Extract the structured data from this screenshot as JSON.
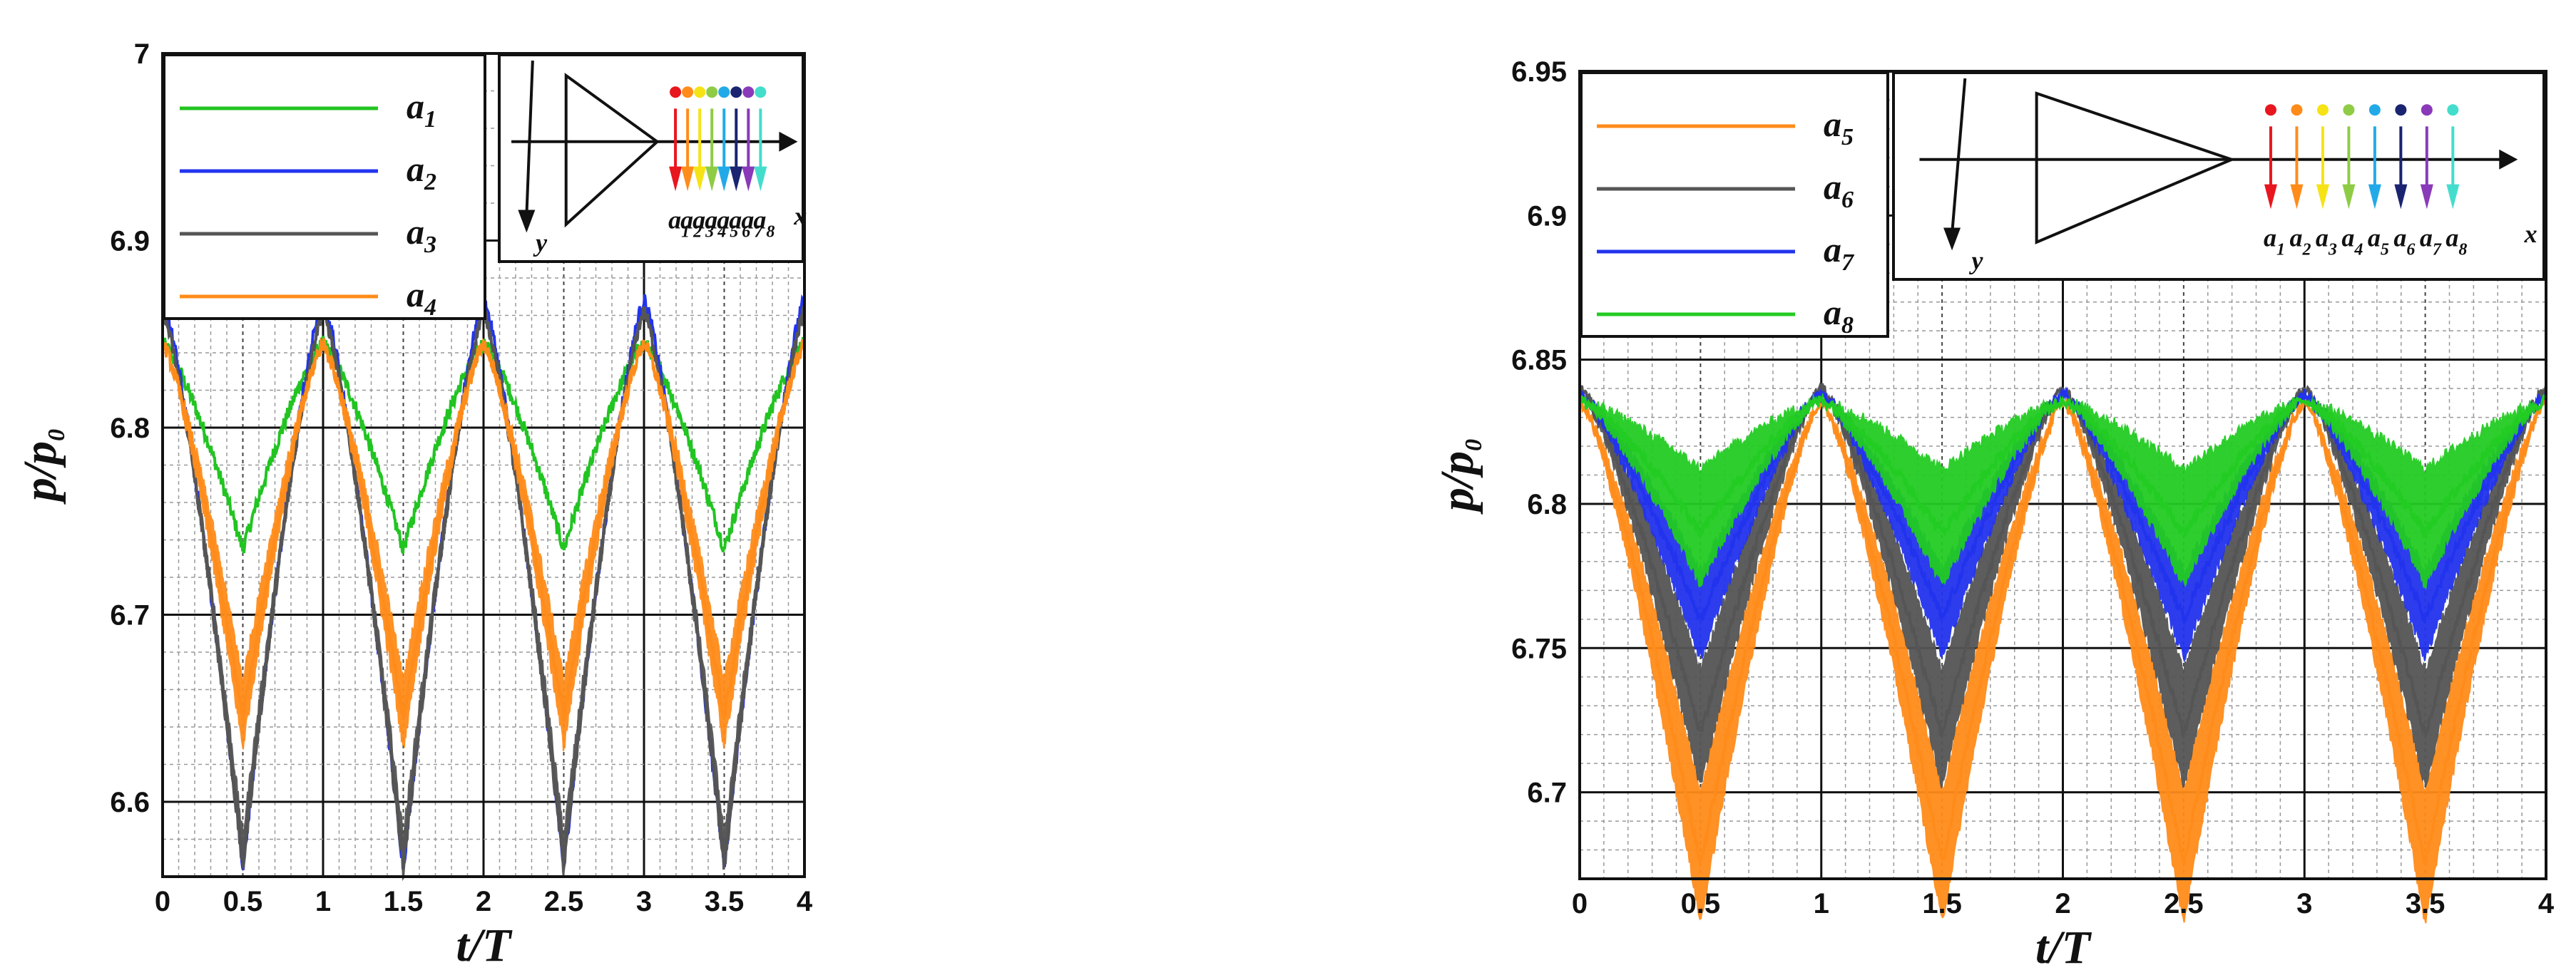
{
  "chart_data": [
    {
      "type": "line",
      "xlabel": "t/T",
      "ylabel": "p/p",
      "ylabel_sub": "0",
      "xlim": [
        0,
        4
      ],
      "ylim": [
        6.56,
        7.0
      ],
      "x_ticks": [
        "0",
        "0.5",
        "1",
        "1.5",
        "2",
        "2.5",
        "3",
        "3.5",
        "4"
      ],
      "y_ticks": [
        "6.6",
        "6.7",
        "6.8",
        "6.9",
        "7"
      ],
      "grid": true,
      "legend_position": "top-left",
      "series": [
        {
          "name": "a",
          "sub": "1",
          "color": "#22c422",
          "peak": 6.845,
          "trough": 6.735,
          "noise": 0.004,
          "band": 0.0
        },
        {
          "name": "a",
          "sub": "2",
          "color": "#2233ee",
          "peak": 6.868,
          "trough": 6.565,
          "noise": 0.004,
          "band": 0.0
        },
        {
          "name": "a",
          "sub": "3",
          "color": "#555555",
          "peak": 6.862,
          "trough": 6.57,
          "noise": 0.004,
          "band": 0.02
        },
        {
          "name": "a",
          "sub": "4",
          "color": "#ff8c1a",
          "peak": 6.845,
          "trough": 6.645,
          "noise": 0.004,
          "band": 0.035
        }
      ],
      "inset": {
        "x_label": "x",
        "y_label": "y",
        "probes": [
          {
            "name": "a",
            "sub": "1",
            "color": "#e8161e"
          },
          {
            "name": "a",
            "sub": "2",
            "color": "#ff8c1a"
          },
          {
            "name": "a",
            "sub": "3",
            "color": "#f5e316"
          },
          {
            "name": "a",
            "sub": "4",
            "color": "#8fcc45"
          },
          {
            "name": "a",
            "sub": "5",
            "color": "#22aae8"
          },
          {
            "name": "a",
            "sub": "6",
            "color": "#1a2470"
          },
          {
            "name": "a",
            "sub": "7",
            "color": "#8a3ab9"
          },
          {
            "name": "a",
            "sub": "8",
            "color": "#44ddcc"
          }
        ]
      }
    },
    {
      "type": "line",
      "xlabel": "t/T",
      "ylabel": "p/p",
      "ylabel_sub": "0",
      "xlim": [
        0,
        4
      ],
      "ylim": [
        6.67,
        6.95
      ],
      "x_ticks": [
        "0",
        "0.5",
        "1",
        "1.5",
        "2",
        "2.5",
        "3",
        "3.5",
        "4"
      ],
      "y_ticks": [
        "6.7",
        "6.75",
        "6.8",
        "6.85",
        "6.9",
        "6.95"
      ],
      "grid": true,
      "legend_position": "top-left",
      "series": [
        {
          "name": "a",
          "sub": "5",
          "color": "#ff8c1a",
          "peak": 6.836,
          "trough": 6.675,
          "noise": 0.002,
          "band": 0.045
        },
        {
          "name": "a",
          "sub": "6",
          "color": "#555555",
          "peak": 6.84,
          "trough": 6.72,
          "noise": 0.002,
          "band": 0.04
        },
        {
          "name": "a",
          "sub": "7",
          "color": "#2233ee",
          "peak": 6.838,
          "trough": 6.76,
          "noise": 0.002,
          "band": 0.03
        },
        {
          "name": "a",
          "sub": "8",
          "color": "#22cc22",
          "peak": 6.836,
          "trough": 6.79,
          "noise": 0.002,
          "band": 0.04
        }
      ],
      "inset": {
        "x_label": "x",
        "y_label": "y",
        "probes": [
          {
            "name": "a",
            "sub": "1",
            "color": "#e8161e"
          },
          {
            "name": "a",
            "sub": "2",
            "color": "#ff8c1a"
          },
          {
            "name": "a",
            "sub": "3",
            "color": "#f5e316"
          },
          {
            "name": "a",
            "sub": "4",
            "color": "#8fcc45"
          },
          {
            "name": "a",
            "sub": "5",
            "color": "#22aae8"
          },
          {
            "name": "a",
            "sub": "6",
            "color": "#1a2470"
          },
          {
            "name": "a",
            "sub": "7",
            "color": "#8a3ab9"
          },
          {
            "name": "a",
            "sub": "8",
            "color": "#44ddcc"
          }
        ]
      }
    }
  ]
}
